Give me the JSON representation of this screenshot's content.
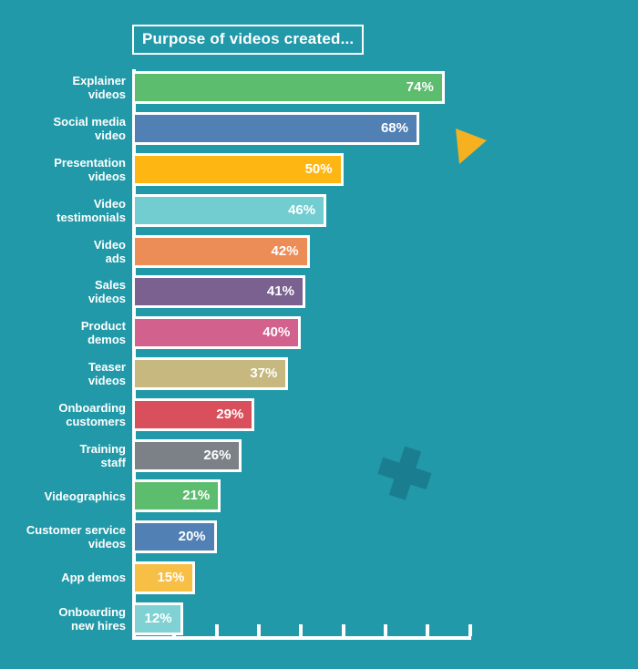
{
  "chart_data": {
    "type": "bar",
    "orientation": "horizontal",
    "title": "Purpose of videos created...",
    "categories": [
      "Explainer\nvideos",
      "Social media\nvideo",
      "Presentation\nvideos",
      "Video\ntestimonials",
      "Video\nads",
      "Sales\nvideos",
      "Product\ndemos",
      "Teaser\nvideos",
      "Onboarding\ncustomers",
      "Training\nstaff",
      "Videographics",
      "Customer service\nvideos",
      "App demos",
      "Onboarding\nnew hires"
    ],
    "values": [
      74,
      68,
      50,
      46,
      42,
      41,
      40,
      37,
      29,
      26,
      21,
      20,
      15,
      12
    ],
    "value_labels": [
      "74%",
      "68%",
      "50%",
      "46%",
      "42%",
      "41%",
      "40%",
      "37%",
      "29%",
      "26%",
      "21%",
      "20%",
      "15%",
      "12%"
    ],
    "unit": "%",
    "xlim": [
      0,
      80
    ],
    "x_ticks": [
      10,
      20,
      30,
      40,
      50,
      60,
      70,
      80
    ],
    "grid": false,
    "legend": false,
    "bar_colors": [
      "#5dbd6e",
      "#5180b4",
      "#feb613",
      "#72cdd1",
      "#ec8c57",
      "#7b6190",
      "#d2618d",
      "#c6b87e",
      "#d94f5c",
      "#7b8186",
      "#5dbd6e",
      "#5180b4",
      "#f7bf45",
      "#7fd1d3"
    ]
  },
  "decorations": {
    "background_color": "#2199a8",
    "axis_color": "#ffffff",
    "bar_border_color": "#ffffff",
    "text_color": "#ffffff",
    "play_triangle_color": "#f6b120",
    "plus_color": "#1b7e90"
  }
}
